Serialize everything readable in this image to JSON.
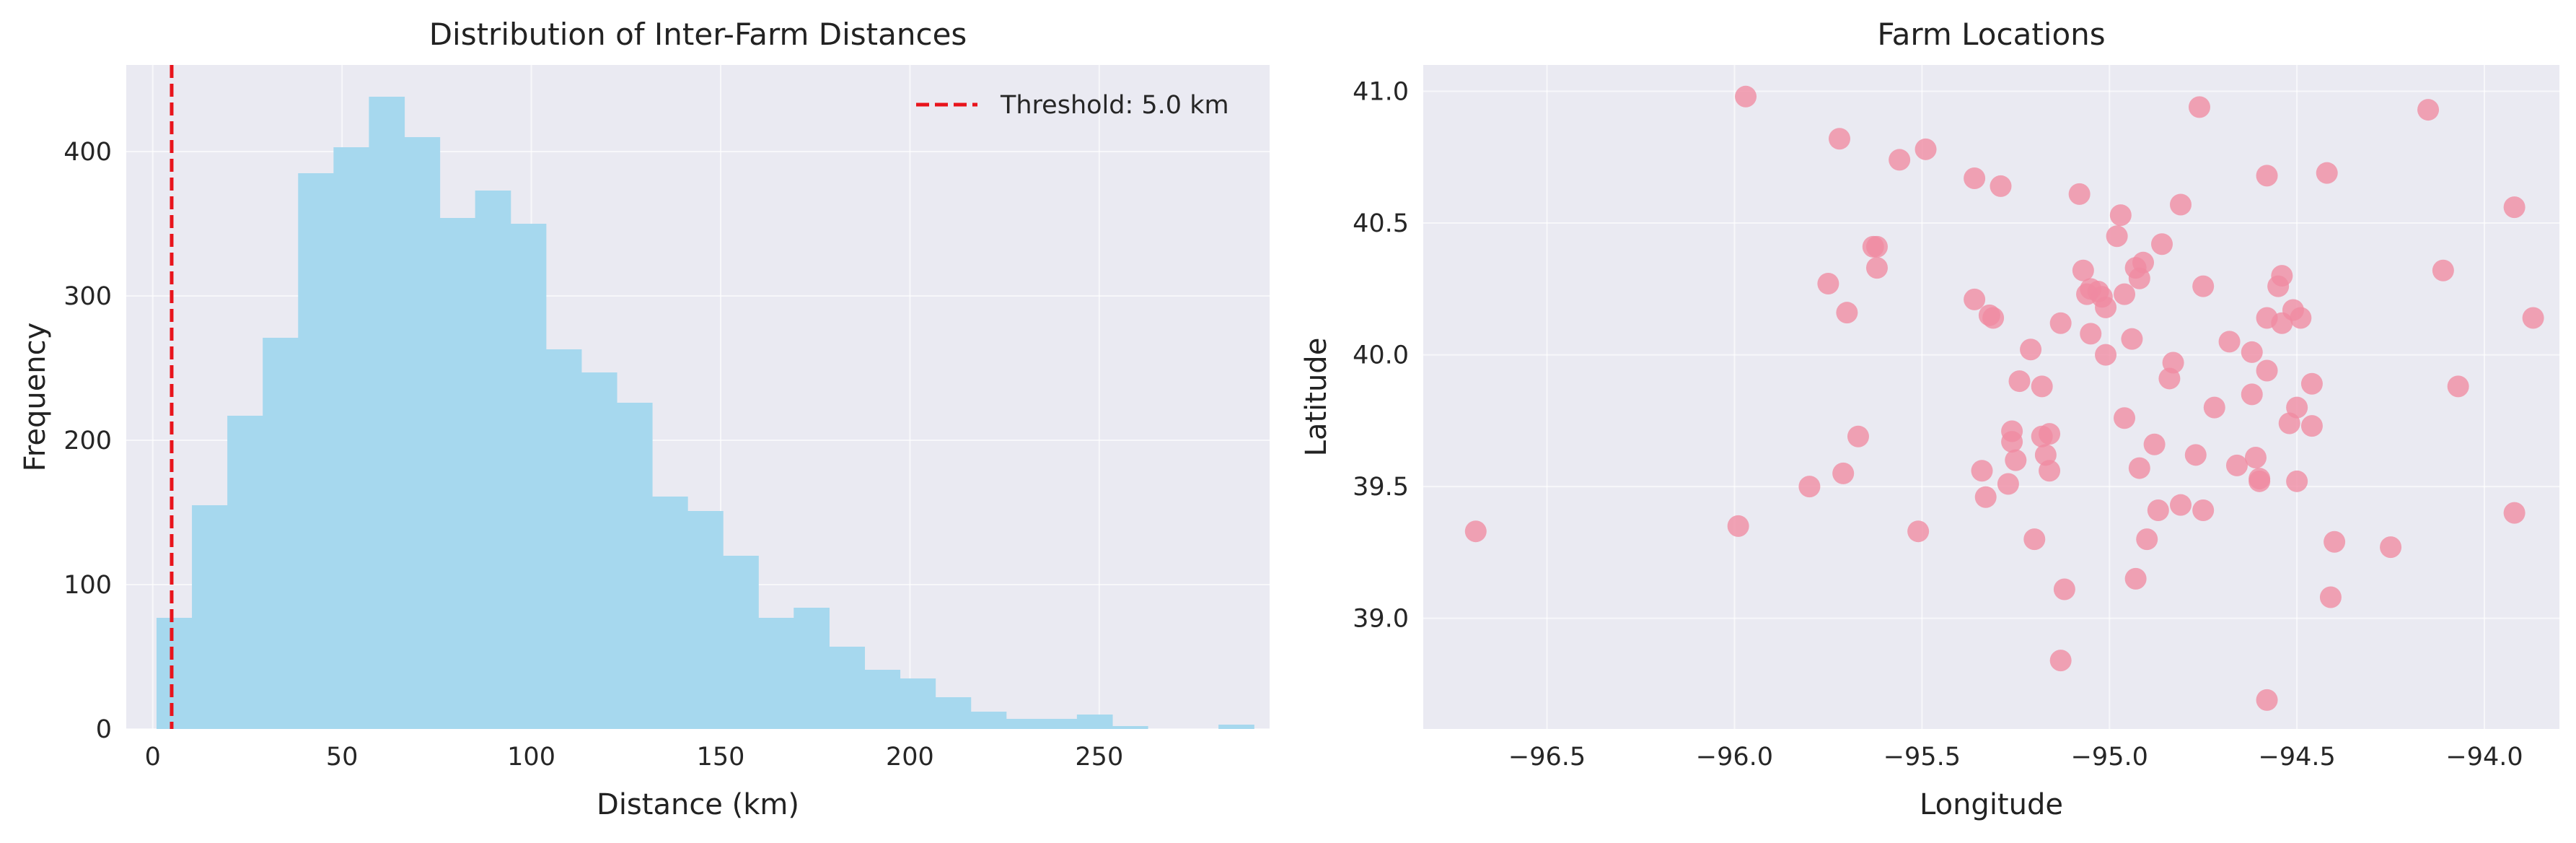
{
  "chart_data": [
    {
      "type": "bar",
      "title": "Distribution of Inter-Farm Distances",
      "xlabel": "Distance (km)",
      "ylabel": "Frequency",
      "xlim": [
        -7,
        295
      ],
      "ylim": [
        0,
        460
      ],
      "xticks": [
        0,
        50,
        100,
        150,
        200,
        250
      ],
      "yticks": [
        0,
        100,
        200,
        300,
        400
      ],
      "grid": true,
      "bar_color": "#a6d8ee",
      "bin_start": 1,
      "bin_width": 9.35,
      "values": [
        77,
        155,
        217,
        271,
        385,
        403,
        438,
        410,
        354,
        373,
        350,
        263,
        247,
        226,
        161,
        151,
        120,
        77,
        84,
        57,
        41,
        35,
        22,
        12,
        7,
        7,
        10,
        2,
        0,
        0,
        3
      ],
      "threshold": {
        "value": 5.0,
        "color": "#e8141c",
        "label": "Threshold: 5.0 km"
      },
      "legend_position": "top-right"
    },
    {
      "type": "scatter",
      "title": "Farm Locations",
      "xlabel": "Longitude",
      "ylabel": "Latitude",
      "xlim": [
        -96.83,
        -93.8
      ],
      "ylim": [
        38.58,
        41.1
      ],
      "xticks": [
        -96.5,
        -96.0,
        -95.5,
        -95.0,
        -94.5,
        -94.0
      ],
      "yticks": [
        39.0,
        39.5,
        40.0,
        40.5,
        41.0
      ],
      "x_tick_labels": [
        "−96.5",
        "−96.0",
        "−95.5",
        "−95.0",
        "−94.5",
        "−94.0"
      ],
      "y_tick_labels": [
        "39.0",
        "39.5",
        "40.0",
        "40.5",
        "41.0"
      ],
      "grid": true,
      "point_color": "#f08aa2",
      "points": [
        [
          -95.97,
          40.98
        ],
        [
          -95.72,
          40.82
        ],
        [
          -95.49,
          40.78
        ],
        [
          -95.56,
          40.74
        ],
        [
          -94.76,
          40.94
        ],
        [
          -94.15,
          40.93
        ],
        [
          -95.36,
          40.67
        ],
        [
          -95.29,
          40.64
        ],
        [
          -94.58,
          40.68
        ],
        [
          -94.42,
          40.69
        ],
        [
          -95.08,
          40.61
        ],
        [
          -94.81,
          40.57
        ],
        [
          -93.92,
          40.56
        ],
        [
          -94.97,
          40.53
        ],
        [
          -94.98,
          40.45
        ],
        [
          -95.63,
          40.41
        ],
        [
          -95.62,
          40.41
        ],
        [
          -94.86,
          40.42
        ],
        [
          -95.07,
          40.32
        ],
        [
          -94.91,
          40.35
        ],
        [
          -95.62,
          40.33
        ],
        [
          -94.93,
          40.33
        ],
        [
          -94.11,
          40.32
        ],
        [
          -94.54,
          40.3
        ],
        [
          -95.75,
          40.27
        ],
        [
          -95.05,
          40.25
        ],
        [
          -94.92,
          40.29
        ],
        [
          -94.75,
          40.26
        ],
        [
          -94.55,
          40.26
        ],
        [
          -95.06,
          40.23
        ],
        [
          -95.03,
          40.24
        ],
        [
          -95.02,
          40.22
        ],
        [
          -94.96,
          40.23
        ],
        [
          -95.36,
          40.21
        ],
        [
          -95.01,
          40.18
        ],
        [
          -94.51,
          40.17
        ],
        [
          -95.7,
          40.16
        ],
        [
          -95.32,
          40.15
        ],
        [
          -95.31,
          40.14
        ],
        [
          -94.58,
          40.14
        ],
        [
          -94.49,
          40.14
        ],
        [
          -93.87,
          40.14
        ],
        [
          -95.13,
          40.12
        ],
        [
          -94.54,
          40.12
        ],
        [
          -95.05,
          40.08
        ],
        [
          -94.94,
          40.06
        ],
        [
          -94.68,
          40.05
        ],
        [
          -95.21,
          40.02
        ],
        [
          -95.01,
          40.0
        ],
        [
          -94.62,
          40.01
        ],
        [
          -94.83,
          39.97
        ],
        [
          -94.58,
          39.94
        ],
        [
          -95.24,
          39.9
        ],
        [
          -95.18,
          39.88
        ],
        [
          -94.84,
          39.91
        ],
        [
          -94.46,
          39.89
        ],
        [
          -94.07,
          39.88
        ],
        [
          -94.62,
          39.85
        ],
        [
          -94.72,
          39.8
        ],
        [
          -94.5,
          39.8
        ],
        [
          -94.96,
          39.76
        ],
        [
          -94.52,
          39.74
        ],
        [
          -94.46,
          39.73
        ],
        [
          -95.26,
          39.71
        ],
        [
          -95.18,
          39.69
        ],
        [
          -95.16,
          39.7
        ],
        [
          -95.67,
          39.69
        ],
        [
          -95.26,
          39.67
        ],
        [
          -94.88,
          39.66
        ],
        [
          -94.77,
          39.62
        ],
        [
          -95.17,
          39.62
        ],
        [
          -95.25,
          39.6
        ],
        [
          -94.61,
          39.61
        ],
        [
          -94.66,
          39.58
        ],
        [
          -95.34,
          39.56
        ],
        [
          -95.16,
          39.56
        ],
        [
          -94.92,
          39.57
        ],
        [
          -95.71,
          39.55
        ],
        [
          -94.6,
          39.53
        ],
        [
          -94.6,
          39.52
        ],
        [
          -94.5,
          39.52
        ],
        [
          -95.8,
          39.5
        ],
        [
          -95.27,
          39.51
        ],
        [
          -95.33,
          39.46
        ],
        [
          -94.81,
          39.43
        ],
        [
          -94.75,
          39.41
        ],
        [
          -94.87,
          39.41
        ],
        [
          -93.92,
          39.4
        ],
        [
          -96.69,
          39.33
        ],
        [
          -95.99,
          39.35
        ],
        [
          -95.51,
          39.33
        ],
        [
          -95.2,
          39.3
        ],
        [
          -94.9,
          39.3
        ],
        [
          -94.4,
          39.29
        ],
        [
          -94.25,
          39.27
        ],
        [
          -94.93,
          39.15
        ],
        [
          -95.12,
          39.11
        ],
        [
          -94.41,
          39.08
        ],
        [
          -95.13,
          38.84
        ],
        [
          -94.58,
          38.69
        ]
      ]
    }
  ]
}
